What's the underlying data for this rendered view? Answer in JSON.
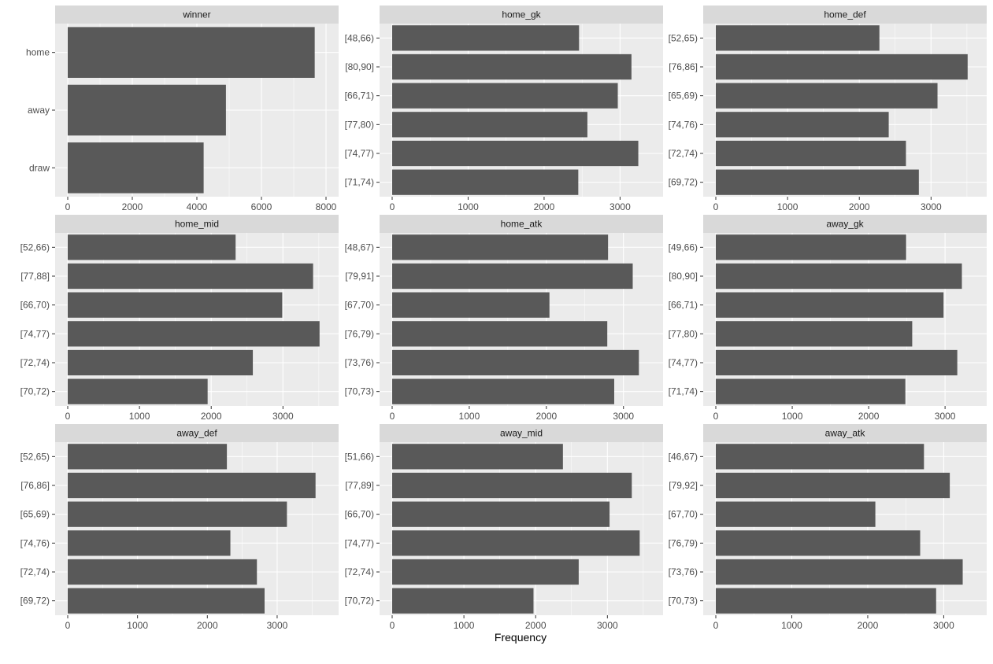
{
  "figure": {
    "xlabel": "Frequency",
    "colors": {
      "bar": "#595959",
      "panel_bg": "#ebebeb",
      "grid_major": "#ffffff",
      "strip_bg": "#d9d9d9",
      "text": "#4d4d4d",
      "strip_text": "#1a1a1a",
      "title_text": "#000000"
    }
  },
  "chart_data": [
    {
      "type": "bar",
      "orientation": "horizontal",
      "title": "winner",
      "categories": [
        "home",
        "away",
        "draw"
      ],
      "values": [
        7650,
        4900,
        4210
      ],
      "xlim": [
        0,
        8000
      ],
      "xticks": [
        0,
        2000,
        4000,
        6000,
        8000
      ]
    },
    {
      "type": "bar",
      "orientation": "horizontal",
      "title": "home_gk",
      "categories": [
        "[48,66)",
        "[80,90]",
        "[66,71)",
        "[77,80)",
        "[74,77)",
        "[71,74)"
      ],
      "values": [
        2460,
        3150,
        2970,
        2570,
        3240,
        2450
      ],
      "xlim": [
        0,
        3400
      ],
      "xticks": [
        0,
        1000,
        2000,
        3000
      ]
    },
    {
      "type": "bar",
      "orientation": "horizontal",
      "title": "home_def",
      "categories": [
        "[52,65)",
        "[76,86]",
        "[65,69)",
        "[74,76)",
        "[72,74)",
        "[69,72)"
      ],
      "values": [
        2280,
        3510,
        3090,
        2410,
        2650,
        2830
      ],
      "xlim": [
        0,
        3600
      ],
      "xticks": [
        0,
        1000,
        2000,
        3000
      ]
    },
    {
      "type": "bar",
      "orientation": "horizontal",
      "title": "home_mid",
      "categories": [
        "[52,66)",
        "[77,88]",
        "[66,70)",
        "[74,77)",
        "[72,74)",
        "[70,72)"
      ],
      "values": [
        2340,
        3420,
        2990,
        3510,
        2580,
        1950
      ],
      "xlim": [
        0,
        3600
      ],
      "xticks": [
        0,
        1000,
        2000,
        3000
      ]
    },
    {
      "type": "bar",
      "orientation": "horizontal",
      "title": "home_atk",
      "categories": [
        "[48,67)",
        "[79,91]",
        "[67,70)",
        "[76,79)",
        "[73,76)",
        "[70,73)"
      ],
      "values": [
        2800,
        3120,
        2040,
        2790,
        3200,
        2880
      ],
      "xlim": [
        0,
        3350
      ],
      "xticks": [
        0,
        1000,
        2000,
        3000
      ]
    },
    {
      "type": "bar",
      "orientation": "horizontal",
      "title": "away_gk",
      "categories": [
        "[49,66)",
        "[80,90]",
        "[66,71)",
        "[77,80)",
        "[74,77)",
        "[71,74)"
      ],
      "values": [
        2490,
        3220,
        2980,
        2570,
        3160,
        2480
      ],
      "xlim": [
        0,
        3380
      ],
      "xticks": [
        0,
        1000,
        2000,
        3000
      ]
    },
    {
      "type": "bar",
      "orientation": "horizontal",
      "title": "away_def",
      "categories": [
        "[52,65)",
        "[76,86]",
        "[65,69)",
        "[74,76)",
        "[72,74)",
        "[69,72)"
      ],
      "values": [
        2280,
        3550,
        3140,
        2330,
        2710,
        2820
      ],
      "xlim": [
        0,
        3700
      ],
      "xticks": [
        0,
        1000,
        2000,
        3000
      ]
    },
    {
      "type": "bar",
      "orientation": "horizontal",
      "title": "away_mid",
      "categories": [
        "[51,66)",
        "[77,89]",
        "[66,70)",
        "[74,77)",
        "[72,74)",
        "[70,72)"
      ],
      "values": [
        2380,
        3340,
        3030,
        3450,
        2600,
        1970
      ],
      "xlim": [
        0,
        3600
      ],
      "xticks": [
        0,
        1000,
        2000,
        3000
      ]
    },
    {
      "type": "bar",
      "orientation": "horizontal",
      "title": "away_atk",
      "categories": [
        "[46,67)",
        "[79,92]",
        "[67,70)",
        "[76,79)",
        "[73,76)",
        "[70,73)"
      ],
      "values": [
        2740,
        3080,
        2100,
        2690,
        3250,
        2900
      ],
      "xlim": [
        0,
        3400
      ],
      "xticks": [
        0,
        1000,
        2000,
        3000
      ]
    }
  ]
}
